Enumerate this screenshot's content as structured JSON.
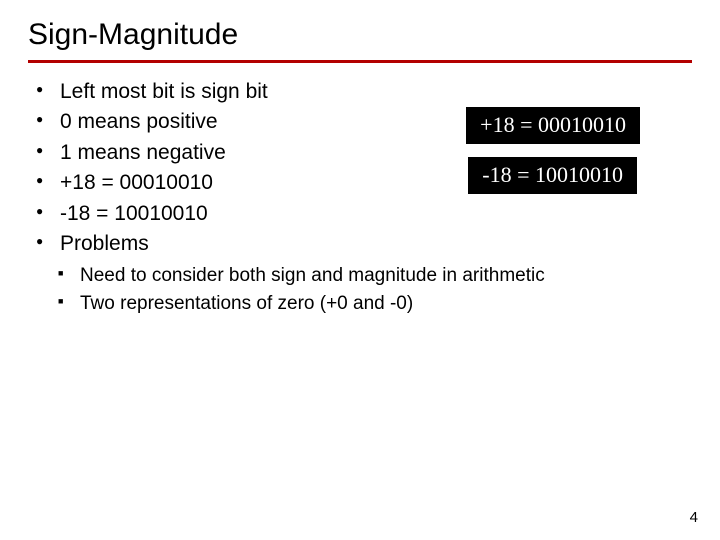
{
  "title": "Sign-Magnitude",
  "rule_color": "#b30000",
  "bullets": [
    "Left most bit is sign bit",
    "0 means positive",
    "1 means negative",
    "+18 = 00010010",
    "-18 = 10010010",
    "Problems"
  ],
  "sub_bullets": [
    "Need to consider both sign and magnitude in arithmetic",
    "Two representations of zero (+0 and -0)"
  ],
  "box1": "+18 = 00010010",
  "box2": "-18 = 10010010",
  "box_bg": "#000000",
  "box_fg": "#ffffff",
  "page_number": "4"
}
